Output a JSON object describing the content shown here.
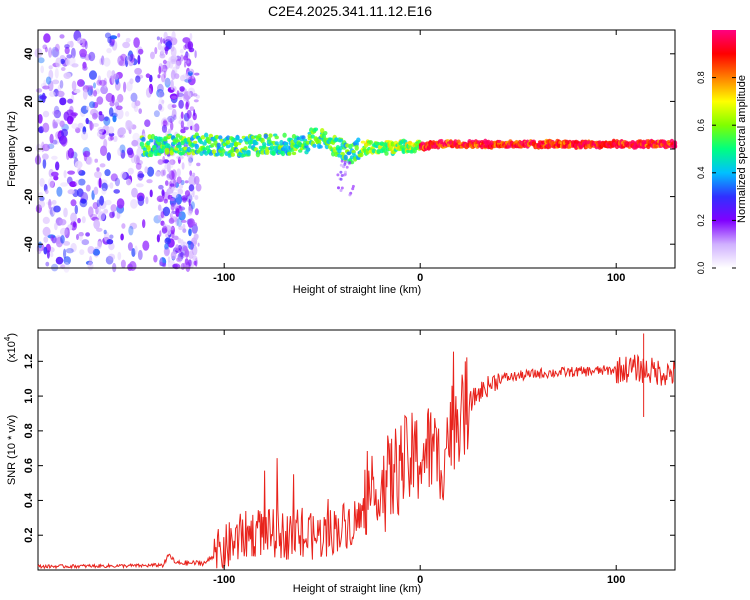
{
  "title": "C2E4.2025.341.11.12.E16",
  "chart_data": [
    {
      "type": "heatmap",
      "xlabel": "Height of straight line (km)",
      "ylabel": "Frequency (Hz)",
      "xlim": [
        -195,
        130
      ],
      "ylim": [
        -50,
        50
      ],
      "xticks": [
        -100,
        0,
        100
      ],
      "yticks": [
        -40,
        -20,
        0,
        20,
        40
      ],
      "colorbar": {
        "label": "Normalized spectral amplitude",
        "range": [
          0,
          1
        ],
        "ticks": [
          "0.0",
          "0.2",
          "0.4",
          "0.6",
          "0.8"
        ],
        "tick_values": [
          0.0,
          0.2,
          0.4,
          0.6,
          0.8
        ],
        "stops": [
          "#ffffff",
          "#d0b0ff",
          "#8000ff",
          "#3030ff",
          "#00c0ff",
          "#00ff80",
          "#80ff00",
          "#ffff00",
          "#ff8000",
          "#ff0000",
          "#ff0080"
        ]
      },
      "ridge": [
        {
          "x": -140,
          "f": 1
        },
        {
          "x": -130,
          "f": 2
        },
        {
          "x": -120,
          "f": 2
        },
        {
          "x": -110,
          "f": 2
        },
        {
          "x": -100,
          "f": 1
        },
        {
          "x": -90,
          "f": 1
        },
        {
          "x": -80,
          "f": 2
        },
        {
          "x": -70,
          "f": 2
        },
        {
          "x": -60,
          "f": 1
        },
        {
          "x": -55,
          "f": 5
        },
        {
          "x": -50,
          "f": 4
        },
        {
          "x": -45,
          "f": 2
        },
        {
          "x": -40,
          "f": 0
        },
        {
          "x": -35,
          "f": -2
        },
        {
          "x": -30,
          "f": 1
        },
        {
          "x": -20,
          "f": 0
        },
        {
          "x": -10,
          "f": 1
        },
        {
          "x": 0,
          "f": 1
        },
        {
          "x": 10,
          "f": 2
        },
        {
          "x": 20,
          "f": 2
        },
        {
          "x": 40,
          "f": 2
        },
        {
          "x": 60,
          "f": 2
        },
        {
          "x": 90,
          "f": 2
        },
        {
          "x": 110,
          "f": 2
        },
        {
          "x": 130,
          "f": 2
        }
      ]
    },
    {
      "type": "line",
      "xlabel": "Height of straight line (km)",
      "ylabel": "SNR (10 * v/v)",
      "multiplier": "(x10",
      "multiplier_exp": "4",
      "multiplier_close": ")",
      "xlim": [
        -195,
        130
      ],
      "ylim": [
        0,
        1.38
      ],
      "xticks": [
        -100,
        0,
        100
      ],
      "yticks": [
        0.2,
        0.4,
        0.6,
        0.8,
        1.0,
        1.2
      ],
      "ytick_labels": [
        "0.2",
        "0.4",
        "0.6",
        "0.8",
        "1.0",
        "1.2"
      ],
      "color": "#e8231c",
      "series": [
        {
          "x": -195,
          "y": 0.02
        },
        {
          "x": -140,
          "y": 0.025
        },
        {
          "x": -131,
          "y": 0.03
        },
        {
          "x": -128,
          "y": 0.09
        },
        {
          "x": -125,
          "y": 0.04
        },
        {
          "x": -110,
          "y": 0.04
        },
        {
          "x": -100,
          "y": 0.12
        },
        {
          "x": -90,
          "y": 0.2
        },
        {
          "x": -80,
          "y": 0.22
        },
        {
          "x": -70,
          "y": 0.2
        },
        {
          "x": -60,
          "y": 0.18
        },
        {
          "x": -50,
          "y": 0.2
        },
        {
          "x": -40,
          "y": 0.25
        },
        {
          "x": -30,
          "y": 0.3
        },
        {
          "x": -20,
          "y": 0.45
        },
        {
          "x": -10,
          "y": 0.6
        },
        {
          "x": 0,
          "y": 0.65
        },
        {
          "x": 5,
          "y": 0.7
        },
        {
          "x": 10,
          "y": 0.6
        },
        {
          "x": 15,
          "y": 0.8
        },
        {
          "x": 20,
          "y": 0.9
        },
        {
          "x": 30,
          "y": 1.02
        },
        {
          "x": 40,
          "y": 1.1
        },
        {
          "x": 60,
          "y": 1.13
        },
        {
          "x": 80,
          "y": 1.14
        },
        {
          "x": 100,
          "y": 1.15
        },
        {
          "x": 110,
          "y": 1.16
        },
        {
          "x": 120,
          "y": 1.14
        },
        {
          "x": 130,
          "y": 1.13
        }
      ],
      "spikes": [
        {
          "x": 114,
          "y_min": 0.88,
          "y_max": 1.36
        }
      ]
    }
  ]
}
